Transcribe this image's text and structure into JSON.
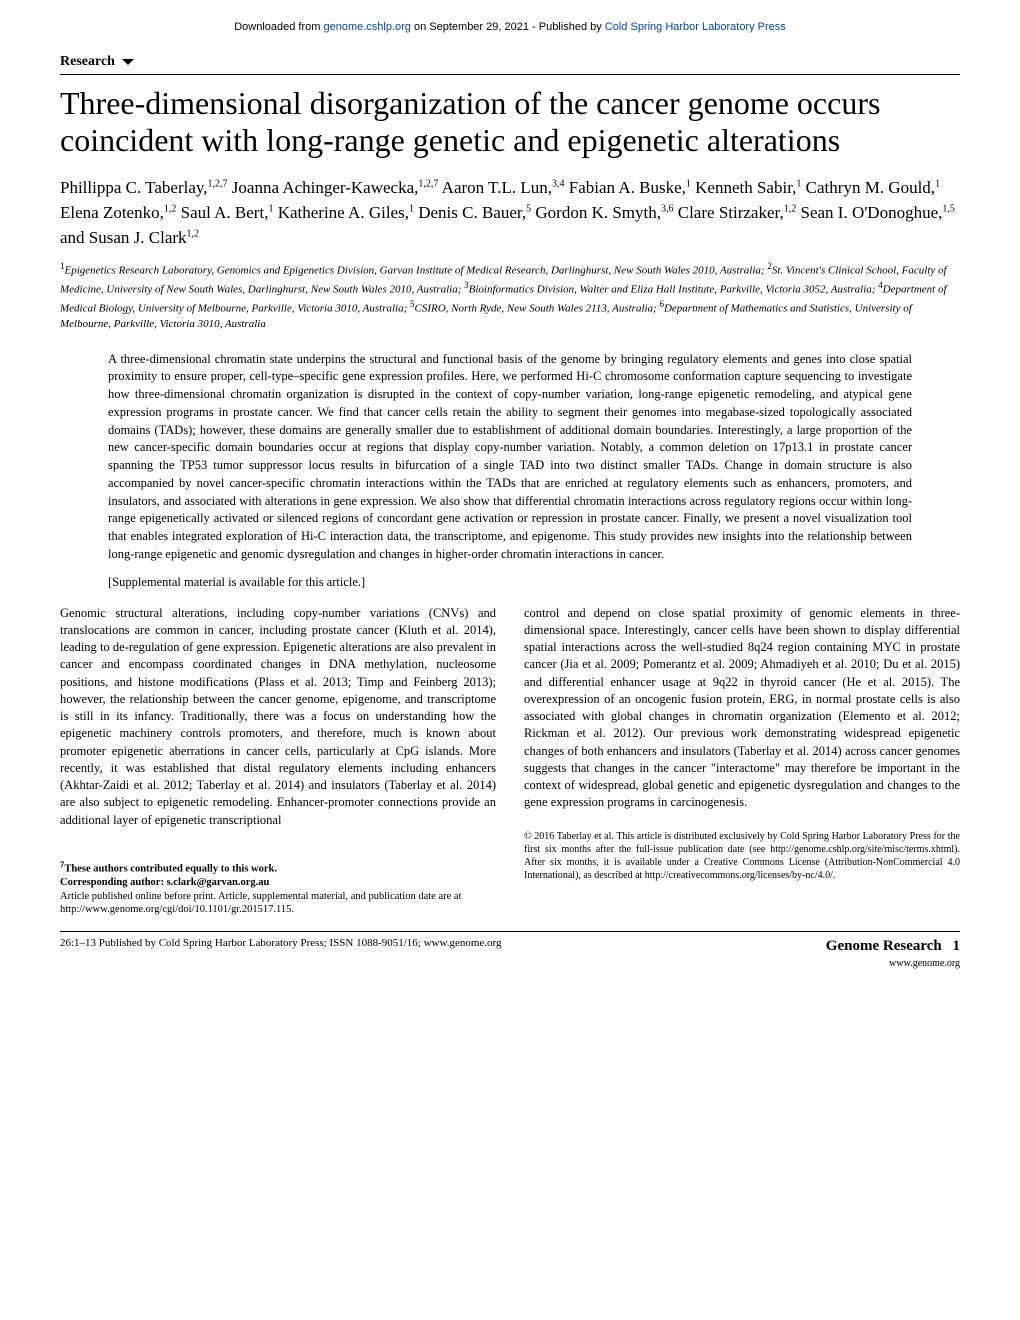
{
  "banner": {
    "prefix": "Downloaded from ",
    "link1_text": "genome.cshlp.org",
    "mid": " on September 29, 2021 - Published by ",
    "link2_text": "Cold Spring Harbor Laboratory Press",
    "link_color": "#0645ad"
  },
  "section_label": "Research",
  "title": "Three-dimensional disorganization of the cancer genome occurs coincident with long-range genetic and epigenetic alterations",
  "authors_html": "Phillippa C. Taberlay,<sup>1,2,7</sup> Joanna Achinger-Kawecka,<sup>1,2,7</sup> Aaron T.L. Lun,<sup>3,4</sup> Fabian A. Buske,<sup>1</sup> Kenneth Sabir,<sup>1</sup> Cathryn M. Gould,<sup>1</sup> Elena Zotenko,<sup>1,2</sup> Saul A. Bert,<sup>1</sup> Katherine A. Giles,<sup>1</sup> Denis C. Bauer,<sup>5</sup> Gordon K. Smyth,<sup>3,6</sup> Clare Stirzaker,<sup>1,2</sup> Sean I. O'Donoghue,<sup>1,5</sup> and Susan J. Clark<sup>1,2</sup>",
  "affiliations_html": "<sup>1</sup>Epigenetics Research Laboratory, Genomics and Epigenetics Division, Garvan Institute of Medical Research, Darlinghurst, New South Wales 2010, Australia; <sup>2</sup>St. Vincent's Clinical School, Faculty of Medicine, University of New South Wales, Darlinghurst, New South Wales 2010, Australia; <sup>3</sup>Bioinformatics Division, Walter and Eliza Hall Institute, Parkville, Victoria 3052, Australia; <sup>4</sup>Department of Medical Biology, University of Melbourne, Parkville, Victoria 3010, Australia; <sup>5</sup>CSIRO, North Ryde, New South Wales 2113, Australia; <sup>6</sup>Department of Mathematics and Statistics, University of Melbourne, Parkville, Victoria 3010, Australia",
  "abstract": "A three-dimensional chromatin state underpins the structural and functional basis of the genome by bringing regulatory elements and genes into close spatial proximity to ensure proper, cell-type–specific gene expression profiles. Here, we performed Hi-C chromosome conformation capture sequencing to investigate how three-dimensional chromatin organization is disrupted in the context of copy-number variation, long-range epigenetic remodeling, and atypical gene expression programs in prostate cancer. We find that cancer cells retain the ability to segment their genomes into megabase-sized topologically associated domains (TADs); however, these domains are generally smaller due to establishment of additional domain boundaries. Interestingly, a large proportion of the new cancer-specific domain boundaries occur at regions that display copy-number variation. Notably, a common deletion on 17p13.1 in prostate cancer spanning the TP53 tumor suppressor locus results in bifurcation of a single TAD into two distinct smaller TADs. Change in domain structure is also accompanied by novel cancer-specific chromatin interactions within the TADs that are enriched at regulatory elements such as enhancers, promoters, and insulators, and associated with alterations in gene expression. We also show that differential chromatin interactions across regulatory regions occur within long-range epigenetically activated or silenced regions of concordant gene activation or repression in prostate cancer. Finally, we present a novel visualization tool that enables integrated exploration of Hi-C interaction data, the transcriptome, and epigenome. This study provides new insights into the relationship between long-range epigenetic and genomic dysregulation and changes in higher-order chromatin interactions in cancer.",
  "supplemental": "[Supplemental material is available for this article.]",
  "body_left": "Genomic structural alterations, including copy-number variations (CNVs) and translocations are common in cancer, including prostate cancer (Kluth et al. 2014), leading to de-regulation of gene expression. Epigenetic alterations are also prevalent in cancer and encompass coordinated changes in DNA methylation, nucleosome positions, and histone modifications (Plass et al. 2013; Timp and Feinberg 2013); however, the relationship between the cancer genome, epigenome, and transcriptome is still in its infancy. Traditionally, there was a focus on understanding how the epigenetic machinery controls promoters, and therefore, much is known about promoter epigenetic aberrations in cancer cells, particularly at CpG islands. More recently, it was established that distal regulatory elements including enhancers (Akhtar-Zaidi et al. 2012; Taberlay et al. 2014) and insulators (Taberlay et al. 2014) are also subject to epigenetic remodeling. Enhancer-promoter connections provide an additional layer of epigenetic transcriptional",
  "body_right": "control and depend on close spatial proximity of genomic elements in three-dimensional space. Interestingly, cancer cells have been shown to display differential spatial interactions across the well-studied 8q24 region containing MYC in prostate cancer (Jia et al. 2009; Pomerantz et al. 2009; Ahmadiyeh et al. 2010; Du et al. 2015) and differential enhancer usage at 9q22 in thyroid cancer (He et al. 2015). The overexpression of an oncogenic fusion protein, ERG, in normal prostate cells is also associated with global changes in chromatin organization (Elemento et al. 2012; Rickman et al. 2012). Our previous work demonstrating widespread epigenetic changes of both enhancers and insulators (Taberlay et al. 2014) across cancer genomes suggests that changes in the cancer \"interactome\" may therefore be important in the context of widespread, global genetic and epigenetic dysregulation and changes to the gene expression programs in carcinogenesis.",
  "footnotes": {
    "equal": "7These authors contributed equally to this work.",
    "corresponding": "Corresponding author: s.clark@garvan.org.au",
    "pub_note": "Article published online before print. Article, supplemental material, and publication date are at http://www.genome.org/cgi/doi/10.1101/gr.201517.115."
  },
  "copyright": "© 2016 Taberlay et al.   This article is distributed exclusively by Cold Spring Harbor Laboratory Press for the first six months after the full-issue publication date (see http://genome.cshlp.org/site/misc/terms.xhtml). After six months, it is available under a Creative Commons License (Attribution-NonCommercial 4.0 International), as described at http://creativecommons.org/licenses/by-nc/4.0/.",
  "footer": {
    "left": "26:1–13 Published by Cold Spring Harbor Laboratory Press; ISSN 1088-9051/16; www.genome.org",
    "journal": "Genome Research",
    "url": "www.genome.org",
    "page": "1"
  },
  "colors": {
    "text": "#000000",
    "background": "#ffffff",
    "link": "#0645ad"
  },
  "typography": {
    "title_fontsize_pt": 24,
    "authors_fontsize_pt": 13,
    "affil_fontsize_pt": 8.5,
    "abstract_fontsize_pt": 9.5,
    "body_fontsize_pt": 9.5,
    "footnote_fontsize_pt": 8
  }
}
